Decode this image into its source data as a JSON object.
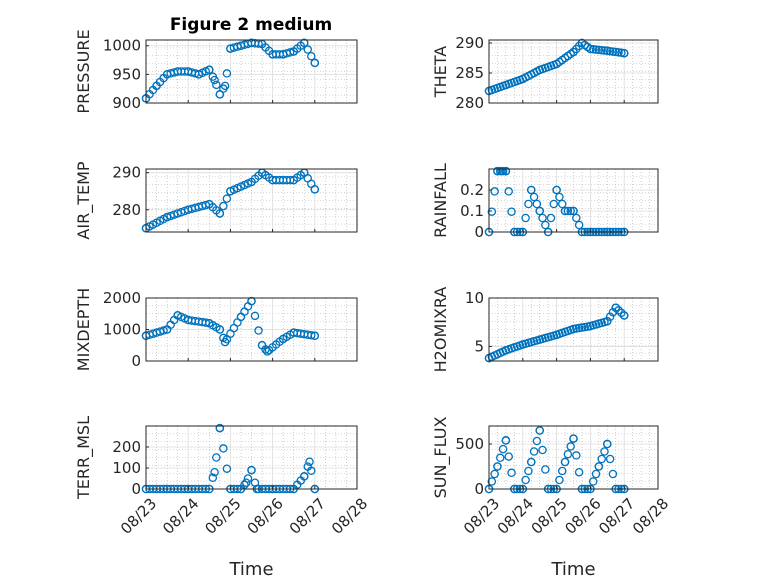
{
  "title": "Figure 2 medium",
  "colors": {
    "marker": "#0072BD",
    "axis": "#262626",
    "grid": "#b0b0b0"
  },
  "chart_data": [
    {
      "type": "scatter",
      "title": "Figure 2 medium",
      "ylabel": "PRESSURE",
      "ylim": [
        900,
        1010
      ],
      "yticks": [
        "900",
        "950",
        "1000"
      ],
      "xticks": [],
      "xlabel": "",
      "grid": true,
      "marker": "open-circle",
      "x": [
        "08/23 00:00",
        "08/23 06:00",
        "08/23 12:00",
        "08/23 18:00",
        "08/24 00:00",
        "08/24 06:00",
        "08/24 12:00",
        "08/24 15:00",
        "08/24 18:00",
        "08/24 21:00",
        "08/25 00:00",
        "08/25 06:00",
        "08/25 12:00",
        "08/25 18:00",
        "08/26 00:00",
        "08/26 06:00",
        "08/26 12:00",
        "08/26 18:00",
        "08/27 00:00"
      ],
      "y": [
        908,
        930,
        950,
        955,
        955,
        950,
        958,
        940,
        915,
        930,
        995,
        1000,
        1005,
        1003,
        985,
        985,
        990,
        1005,
        970
      ]
    },
    {
      "type": "scatter",
      "ylabel": "THETA",
      "ylim": [
        280,
        290.5
      ],
      "yticks": [
        "280",
        "285",
        "290"
      ],
      "xticks": [],
      "xlabel": "",
      "grid": true,
      "marker": "open-circle",
      "x": [
        "08/23 00:00",
        "08/23 12:00",
        "08/24 00:00",
        "08/24 12:00",
        "08/25 00:00",
        "08/25 12:00",
        "08/25 18:00",
        "08/26 00:00",
        "08/26 12:00",
        "08/27 00:00"
      ],
      "y": [
        282,
        283,
        284,
        285.5,
        286.5,
        288.5,
        290,
        289,
        288.7,
        288.3
      ]
    },
    {
      "type": "scatter",
      "ylabel": "AIR_TEMP",
      "ylim": [
        274,
        291
      ],
      "yticks": [
        "280",
        "290"
      ],
      "xticks": [],
      "xlabel": "",
      "grid": true,
      "marker": "open-circle",
      "x": [
        "08/23 00:00",
        "08/23 12:00",
        "08/24 00:00",
        "08/24 12:00",
        "08/24 18:00",
        "08/25 00:00",
        "08/25 12:00",
        "08/25 18:00",
        "08/26 00:00",
        "08/26 12:00",
        "08/26 18:00",
        "08/27 00:00"
      ],
      "y": [
        275,
        278,
        280,
        281.5,
        279,
        285,
        287.5,
        290,
        288,
        288,
        290,
        285.5
      ]
    },
    {
      "type": "scatter",
      "ylabel": "RAINFALL",
      "ylim": [
        0,
        0.3
      ],
      "yticks": [
        "0",
        "0.1",
        "0.2"
      ],
      "xticks": [],
      "xlabel": "",
      "grid": true,
      "marker": "open-circle",
      "x": [
        "08/23 00:00",
        "08/23 06:00",
        "08/23 09:00",
        "08/23 12:00",
        "08/23 18:00",
        "08/24 00:00",
        "08/24 06:00",
        "08/24 12:00",
        "08/24 18:00",
        "08/25 00:00",
        "08/25 06:00",
        "08/25 12:00",
        "08/25 18:00",
        "08/26 00:00",
        "08/26 12:00",
        "08/27 00:00"
      ],
      "y": [
        0,
        0.29,
        0.29,
        0.29,
        0,
        0,
        0.2,
        0.1,
        0,
        0.2,
        0.1,
        0.1,
        0,
        0,
        0,
        0
      ]
    },
    {
      "type": "scatter",
      "ylabel": "MIXDEPTH",
      "ylim": [
        0,
        2000
      ],
      "yticks": [
        "0",
        "1000",
        "2000"
      ],
      "xticks": [],
      "xlabel": "",
      "grid": true,
      "marker": "open-circle",
      "x": [
        "08/23 00:00",
        "08/23 12:00",
        "08/23 18:00",
        "08/24 00:00",
        "08/24 12:00",
        "08/24 18:00",
        "08/24 21:00",
        "08/25 06:00",
        "08/25 12:00",
        "08/25 18:00",
        "08/25 21:00",
        "08/26 06:00",
        "08/26 12:00",
        "08/27 00:00"
      ],
      "y": [
        800,
        1000,
        1450,
        1300,
        1200,
        1000,
        600,
        1400,
        1900,
        500,
        300,
        700,
        900,
        800
      ]
    },
    {
      "type": "scatter",
      "ylabel": "H2OMIXRA",
      "ylim": [
        3.5,
        10
      ],
      "yticks": [
        "5",
        "10"
      ],
      "xticks": [],
      "xlabel": "",
      "grid": true,
      "marker": "open-circle",
      "x": [
        "08/23 00:00",
        "08/23 12:00",
        "08/24 00:00",
        "08/24 12:00",
        "08/25 00:00",
        "08/25 12:00",
        "08/26 00:00",
        "08/26 12:00",
        "08/26 18:00",
        "08/27 00:00"
      ],
      "y": [
        3.8,
        4.6,
        5.2,
        5.7,
        6.2,
        6.8,
        7.1,
        7.6,
        9,
        8.2
      ]
    },
    {
      "type": "scatter",
      "ylabel": "TERR_MSL",
      "ylim": [
        0,
        300
      ],
      "yticks": [
        "0",
        "100",
        "200"
      ],
      "xticks": [
        "08/23",
        "08/24",
        "08/25",
        "08/26",
        "08/27",
        "08/28"
      ],
      "xlabel": "Time",
      "grid": true,
      "marker": "open-circle",
      "x": [
        "08/23 00:00",
        "08/23 12:00",
        "08/24 00:00",
        "08/24 12:00",
        "08/24 15:00",
        "08/24 18:00",
        "08/25 00:00",
        "08/25 06:00",
        "08/25 09:00",
        "08/25 12:00",
        "08/25 15:00",
        "08/26 00:00",
        "08/26 12:00",
        "08/26 18:00",
        "08/26 21:00",
        "08/27 00:00"
      ],
      "y": [
        0,
        0,
        0,
        0,
        80,
        290,
        0,
        0,
        30,
        90,
        0,
        0,
        0,
        60,
        130,
        0
      ]
    },
    {
      "type": "scatter",
      "ylabel": "SUN_FLUX",
      "ylim": [
        0,
        700
      ],
      "yticks": [
        "0",
        "500"
      ],
      "xticks": [
        "08/23",
        "08/24",
        "08/25",
        "08/26",
        "08/27",
        "08/28"
      ],
      "xlabel": "Time",
      "grid": true,
      "marker": "open-circle",
      "x": [
        "08/23 00:00",
        "08/23 06:00",
        "08/23 12:00",
        "08/23 18:00",
        "08/24 00:00",
        "08/24 06:00",
        "08/24 12:00",
        "08/24 18:00",
        "08/25 00:00",
        "08/25 06:00",
        "08/25 12:00",
        "08/25 18:00",
        "08/26 00:00",
        "08/26 06:00",
        "08/26 12:00",
        "08/26 18:00",
        "08/27 00:00"
      ],
      "y": [
        0,
        250,
        540,
        0,
        0,
        300,
        650,
        0,
        0,
        300,
        560,
        0,
        0,
        250,
        500,
        0,
        0
      ]
    }
  ]
}
